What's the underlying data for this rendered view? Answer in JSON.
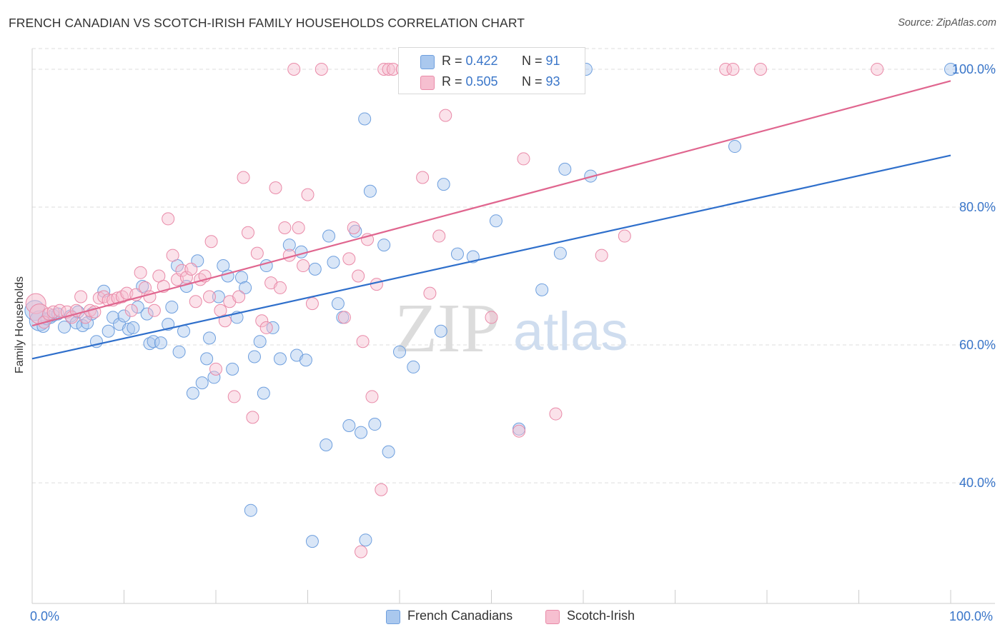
{
  "title": "FRENCH CANADIAN VS SCOTCH-IRISH FAMILY HOUSEHOLDS CORRELATION CHART",
  "source": "Source: ZipAtlas.com",
  "watermark": {
    "zip": "ZIP",
    "atlas": "atlas"
  },
  "colors": {
    "blue_fill": "#aac8ee",
    "blue_stroke": "#6e9fde",
    "blue_line": "#2f6fcb",
    "pink_fill": "#f6bfd0",
    "pink_stroke": "#e98aa8",
    "pink_line": "#e0668f",
    "axis_label": "#3a76c9",
    "grid": "#dddddd"
  },
  "legend_top": {
    "rows": [
      {
        "r_label": "R = ",
        "r_value": "0.422",
        "n_label": "N = ",
        "n_value": "91",
        "color": "blue"
      },
      {
        "r_label": "R = ",
        "r_value": "0.505",
        "n_label": "N = ",
        "n_value": "93",
        "color": "pink"
      }
    ]
  },
  "legend_bottom": {
    "items": [
      "French Canadians",
      "Scotch-Irish"
    ]
  },
  "chart_data": {
    "type": "scatter",
    "title": "FRENCH CANADIAN VS SCOTCH-IRISH FAMILY HOUSEHOLDS CORRELATION CHART",
    "xlabel": "",
    "ylabel": "Family Households",
    "xlim": [
      0,
      100
    ],
    "ylim": [
      22.5,
      103
    ],
    "x_tick_labels": [
      "0.0%",
      "100.0%"
    ],
    "y_ticks": [
      40,
      60,
      80,
      100
    ],
    "y_tick_labels": [
      "40.0%",
      "60.0%",
      "80.0%",
      "100.0%"
    ],
    "grid": true,
    "legend_position": "top-center",
    "series": [
      {
        "name": "French Canadians",
        "color": "blue",
        "trend": {
          "x": [
            0,
            100
          ],
          "y": [
            58.0,
            87.5
          ]
        },
        "points": [
          [
            0.3,
            65.0
          ],
          [
            0.8,
            63.5
          ],
          [
            1.2,
            62.7
          ],
          [
            1.6,
            63.8
          ],
          [
            2.0,
            64.0
          ],
          [
            2.3,
            64.3
          ],
          [
            2.8,
            64.5
          ],
          [
            3.5,
            62.6
          ],
          [
            4.2,
            64.2
          ],
          [
            4.8,
            63.2
          ],
          [
            5.0,
            64.8
          ],
          [
            5.5,
            62.8
          ],
          [
            6.0,
            63.2
          ],
          [
            6.5,
            64.5
          ],
          [
            7.0,
            60.5
          ],
          [
            7.8,
            67.8
          ],
          [
            8.3,
            62.0
          ],
          [
            8.8,
            64.0
          ],
          [
            9.5,
            63.0
          ],
          [
            10.0,
            64.2
          ],
          [
            10.5,
            62.3
          ],
          [
            11.0,
            62.5
          ],
          [
            11.5,
            65.5
          ],
          [
            12.0,
            68.5
          ],
          [
            12.5,
            64.5
          ],
          [
            12.8,
            60.2
          ],
          [
            13.2,
            60.5
          ],
          [
            14.0,
            60.3
          ],
          [
            14.8,
            63.0
          ],
          [
            15.2,
            65.5
          ],
          [
            15.8,
            71.5
          ],
          [
            16.0,
            59.0
          ],
          [
            16.5,
            62.0
          ],
          [
            16.8,
            68.5
          ],
          [
            17.5,
            53.0
          ],
          [
            18.0,
            72.2
          ],
          [
            18.5,
            54.5
          ],
          [
            19.0,
            58.0
          ],
          [
            19.3,
            61.0
          ],
          [
            19.8,
            55.3
          ],
          [
            20.3,
            67.0
          ],
          [
            20.8,
            71.5
          ],
          [
            21.3,
            70.0
          ],
          [
            21.8,
            56.5
          ],
          [
            22.3,
            64.0
          ],
          [
            22.8,
            69.8
          ],
          [
            23.2,
            68.3
          ],
          [
            23.8,
            36.0
          ],
          [
            24.2,
            58.3
          ],
          [
            24.8,
            60.5
          ],
          [
            25.2,
            53.0
          ],
          [
            25.5,
            71.5
          ],
          [
            26.2,
            62.5
          ],
          [
            27.0,
            58.0
          ],
          [
            28.0,
            74.5
          ],
          [
            28.8,
            58.5
          ],
          [
            29.3,
            73.5
          ],
          [
            29.8,
            57.8
          ],
          [
            30.5,
            31.5
          ],
          [
            30.8,
            71.0
          ],
          [
            32.0,
            45.5
          ],
          [
            32.3,
            75.8
          ],
          [
            32.8,
            72.0
          ],
          [
            33.3,
            66.0
          ],
          [
            33.8,
            64.0
          ],
          [
            34.5,
            48.3
          ],
          [
            35.2,
            76.5
          ],
          [
            35.8,
            47.3
          ],
          [
            36.2,
            92.8
          ],
          [
            36.3,
            31.7
          ],
          [
            36.8,
            82.3
          ],
          [
            37.3,
            48.5
          ],
          [
            38.3,
            74.5
          ],
          [
            38.8,
            44.5
          ],
          [
            40.0,
            59.0
          ],
          [
            41.5,
            56.8
          ],
          [
            42.5,
            100.0
          ],
          [
            44.5,
            62.0
          ],
          [
            44.8,
            83.3
          ],
          [
            46.3,
            73.2
          ],
          [
            47.8,
            100.0
          ],
          [
            48.0,
            72.8
          ],
          [
            50.5,
            78.0
          ],
          [
            53.0,
            47.8
          ],
          [
            55.5,
            68.0
          ],
          [
            57.5,
            73.3
          ],
          [
            58.0,
            85.5
          ],
          [
            60.3,
            100.0
          ],
          [
            60.8,
            84.5
          ],
          [
            76.5,
            88.8
          ],
          [
            100.0,
            100.0
          ]
        ]
      },
      {
        "name": "Scotch-Irish",
        "color": "pink",
        "trend": {
          "x": [
            0,
            100
          ],
          "y": [
            62.8,
            98.3
          ]
        },
        "points": [
          [
            0.4,
            66.0
          ],
          [
            0.8,
            64.5
          ],
          [
            1.3,
            63.3
          ],
          [
            1.8,
            64.5
          ],
          [
            2.3,
            64.8
          ],
          [
            3.0,
            65.0
          ],
          [
            3.8,
            64.8
          ],
          [
            4.3,
            64.0
          ],
          [
            4.8,
            65.0
          ],
          [
            5.3,
            67.0
          ],
          [
            5.8,
            64.0
          ],
          [
            6.3,
            65.0
          ],
          [
            6.8,
            64.8
          ],
          [
            7.3,
            66.8
          ],
          [
            7.8,
            67.0
          ],
          [
            8.3,
            66.5
          ],
          [
            8.8,
            66.5
          ],
          [
            9.3,
            66.8
          ],
          [
            9.8,
            67.0
          ],
          [
            10.3,
            67.5
          ],
          [
            10.8,
            65.0
          ],
          [
            11.3,
            67.3
          ],
          [
            11.8,
            70.5
          ],
          [
            12.3,
            68.3
          ],
          [
            12.8,
            67.0
          ],
          [
            13.3,
            65.0
          ],
          [
            13.8,
            70.0
          ],
          [
            14.3,
            68.5
          ],
          [
            14.8,
            78.3
          ],
          [
            15.3,
            73.0
          ],
          [
            15.8,
            69.5
          ],
          [
            16.3,
            70.8
          ],
          [
            16.8,
            69.8
          ],
          [
            17.3,
            71.0
          ],
          [
            17.8,
            66.3
          ],
          [
            18.3,
            69.5
          ],
          [
            18.8,
            70.0
          ],
          [
            19.3,
            67.0
          ],
          [
            19.5,
            75.0
          ],
          [
            20.0,
            56.5
          ],
          [
            20.5,
            65.0
          ],
          [
            21.0,
            63.5
          ],
          [
            21.5,
            66.3
          ],
          [
            22.0,
            52.5
          ],
          [
            22.5,
            67.0
          ],
          [
            23.0,
            84.3
          ],
          [
            23.5,
            76.3
          ],
          [
            24.0,
            49.5
          ],
          [
            24.5,
            73.3
          ],
          [
            25.0,
            63.5
          ],
          [
            25.5,
            62.5
          ],
          [
            26.0,
            69.0
          ],
          [
            26.5,
            82.8
          ],
          [
            27.0,
            68.3
          ],
          [
            27.5,
            77.0
          ],
          [
            28.0,
            73.0
          ],
          [
            28.5,
            100.0
          ],
          [
            29.0,
            77.0
          ],
          [
            29.5,
            71.5
          ],
          [
            30.0,
            81.8
          ],
          [
            30.5,
            66.0
          ],
          [
            31.5,
            100.0
          ],
          [
            34.0,
            64.0
          ],
          [
            34.5,
            72.5
          ],
          [
            35.0,
            77.0
          ],
          [
            35.5,
            70.0
          ],
          [
            36.0,
            60.5
          ],
          [
            36.5,
            75.3
          ],
          [
            37.0,
            52.5
          ],
          [
            37.5,
            68.8
          ],
          [
            38.0,
            39.0
          ],
          [
            38.3,
            100.0
          ],
          [
            38.8,
            100.0
          ],
          [
            39.3,
            100.0
          ],
          [
            40.3,
            100.0
          ],
          [
            41.3,
            100.0
          ],
          [
            42.5,
            84.3
          ],
          [
            43.3,
            67.5
          ],
          [
            44.3,
            75.8
          ],
          [
            45.0,
            93.3
          ],
          [
            47.0,
            100.0
          ],
          [
            50.0,
            64.0
          ],
          [
            53.0,
            47.5
          ],
          [
            53.5,
            87.0
          ],
          [
            55.5,
            100.0
          ],
          [
            57.0,
            50.0
          ],
          [
            62.0,
            73.0
          ],
          [
            64.5,
            75.8
          ],
          [
            75.5,
            100.0
          ],
          [
            76.3,
            100.0
          ],
          [
            79.3,
            100.0
          ],
          [
            92.0,
            100.0
          ],
          [
            35.8,
            30.0
          ]
        ]
      }
    ]
  }
}
